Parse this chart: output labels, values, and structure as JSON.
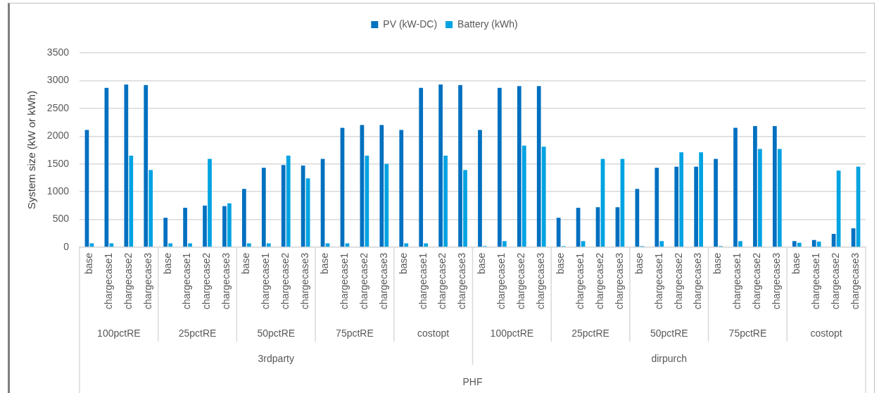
{
  "chart_data": {
    "type": "bar",
    "categories": [
      "base",
      "chargecase1",
      "chargecase2",
      "chargecase3",
      "base",
      "chargecase1",
      "chargecase2",
      "chargecase3",
      "base",
      "chargecase1",
      "chargecase2",
      "chargecase3",
      "base",
      "chargecase1",
      "chargecase2",
      "chargecase3",
      "base",
      "chargecase1",
      "chargecase2",
      "chargecase3",
      "base",
      "chargecase1",
      "chargecase2",
      "chargecase3",
      "base",
      "chargecase1",
      "chargecase2",
      "chargecase3",
      "base",
      "chargecase1",
      "chargecase2",
      "chargecase3",
      "base",
      "chargecase1",
      "chargecase2",
      "chargecase3",
      "base",
      "chargecase1",
      "chargecase2",
      "chargecase3"
    ],
    "series": [
      {
        "name": "PV (kW-DC)",
        "color": "#0070c0",
        "values": [
          2110,
          2870,
          2930,
          2920,
          530,
          710,
          750,
          740,
          1050,
          1430,
          1480,
          1470,
          1590,
          2150,
          2200,
          2200,
          2110,
          2870,
          2930,
          2920,
          2110,
          2870,
          2900,
          2900,
          530,
          710,
          720,
          720,
          1050,
          1430,
          1450,
          1450,
          1590,
          2150,
          2180,
          2180,
          110,
          130,
          240,
          340
        ]
      },
      {
        "name": "Battery (kWh)",
        "color": "#00a3e2",
        "values": [
          70,
          70,
          1650,
          1390,
          70,
          70,
          1590,
          790,
          70,
          70,
          1650,
          1240,
          70,
          70,
          1650,
          1500,
          70,
          70,
          1650,
          1390,
          20,
          110,
          1830,
          1810,
          20,
          110,
          1590,
          1590,
          20,
          110,
          1710,
          1710,
          20,
          110,
          1770,
          1770,
          80,
          100,
          1380,
          1450
        ]
      }
    ],
    "ylabel": "System size (kW or kWh)",
    "ylim": [
      0,
      3500
    ],
    "yticks": [
      0,
      500,
      1000,
      1500,
      2000,
      2500,
      3000,
      3500
    ],
    "grid": "y",
    "legend": "top",
    "annotations": [
      "100pctRE",
      "25pctRE",
      "50pctRE",
      "75pctRE",
      "costopt",
      "100pctRE",
      "25pctRE",
      "50pctRE",
      "75pctRE",
      "costopt",
      "3rdparty",
      "dirpurch",
      "PHF"
    ]
  }
}
